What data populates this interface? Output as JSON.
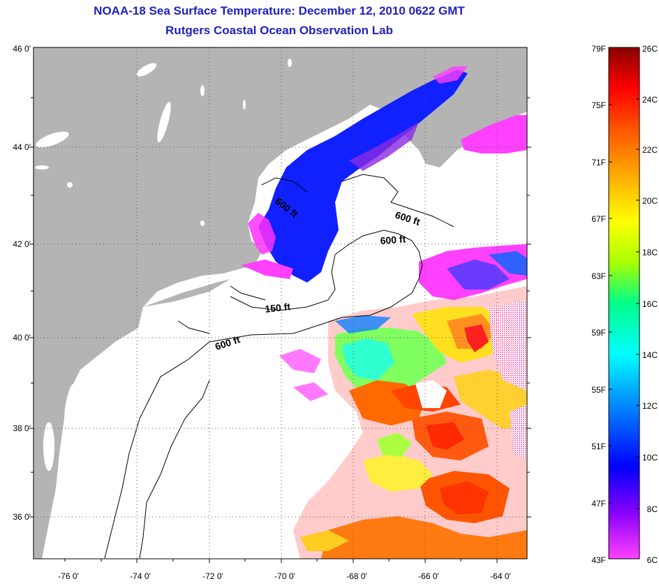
{
  "title_line1": "NOAA-18 Sea Surface Temperature:  December 12, 2010 0622 GMT",
  "title_line2": "Rutgers Coastal Ocean Observation Lab",
  "map": {
    "lat_ticks": [
      "46 0'",
      "44 0'",
      "42 0'",
      "40 0'",
      "38 0'",
      "36 0'"
    ],
    "lon_ticks": [
      "-76 0'",
      "-74 0'",
      "-72 0'",
      "-70 0'",
      "-68 0'",
      "-66 0'",
      "-64 0'"
    ],
    "contour_labels": [
      "600 ft",
      "600 ft",
      "600 ft",
      "150 ft",
      "600 ft"
    ]
  },
  "colorbar": {
    "fahrenheit": [
      "79F",
      "75F",
      "71F",
      "67F",
      "63F",
      "59F",
      "55F",
      "51F",
      "47F",
      "43F"
    ],
    "celsius": [
      "26C",
      "24C",
      "22C",
      "20C",
      "18C",
      "16C",
      "14C",
      "12C",
      "10C",
      "8C",
      "6C"
    ],
    "colors": [
      "#ff40ff",
      "#8800ff",
      "#0000ff",
      "#0088ff",
      "#00ffff",
      "#00ff88",
      "#aaff00",
      "#ffff00",
      "#ffaa00",
      "#ff5500",
      "#ff0000",
      "#880000"
    ]
  },
  "colors": {
    "land": "#b4b4b4",
    "title": "#1f1fbf"
  }
}
